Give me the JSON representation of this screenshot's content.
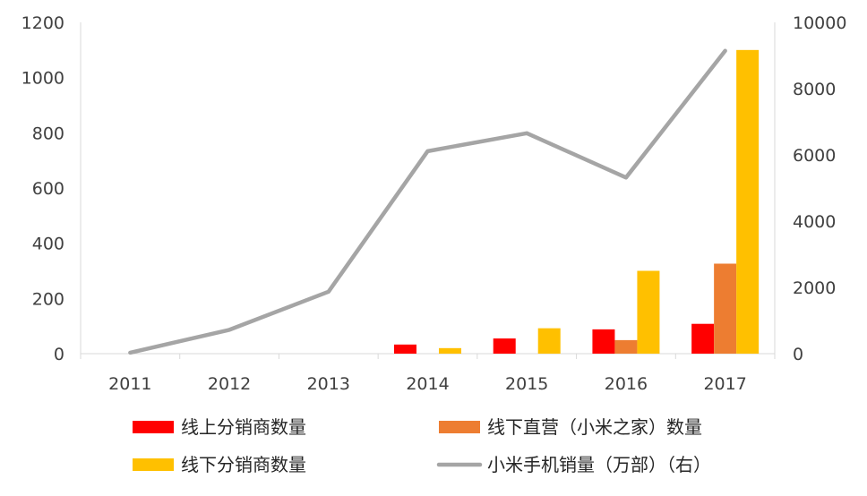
{
  "chart_data": {
    "type": "bar",
    "categories": [
      "2011",
      "2012",
      "2013",
      "2014",
      "2015",
      "2016",
      "2017"
    ],
    "y_left": {
      "ylim": [
        0,
        1200
      ],
      "ticks": [
        0,
        200,
        400,
        600,
        800,
        1000,
        1200
      ]
    },
    "y_right": {
      "ylim": [
        0,
        10000
      ],
      "ticks": [
        0,
        2000,
        4000,
        6000,
        8000,
        10000
      ]
    },
    "series": [
      {
        "name": "线上分销商数量",
        "type": "bar",
        "axis": "left",
        "color": "#ff0000",
        "values": [
          0,
          0,
          0,
          33,
          55,
          88,
          108
        ]
      },
      {
        "name": "线下直营（小米之家）数量",
        "type": "bar",
        "axis": "left",
        "color": "#ed7d31",
        "values": [
          0,
          0,
          0,
          0,
          0,
          49,
          326
        ]
      },
      {
        "name": "线下分销商数量",
        "type": "bar",
        "axis": "left",
        "color": "#ffc000",
        "values": [
          0,
          0,
          0,
          20,
          92,
          300,
          1100
        ]
      },
      {
        "name": "小米手机销量（万部）（右）",
        "type": "line",
        "axis": "right",
        "color": "#a5a5a5",
        "values": [
          30,
          719,
          1870,
          6112,
          6654,
          5316,
          9141
        ]
      }
    ],
    "grid": false,
    "legend": "bottom"
  }
}
